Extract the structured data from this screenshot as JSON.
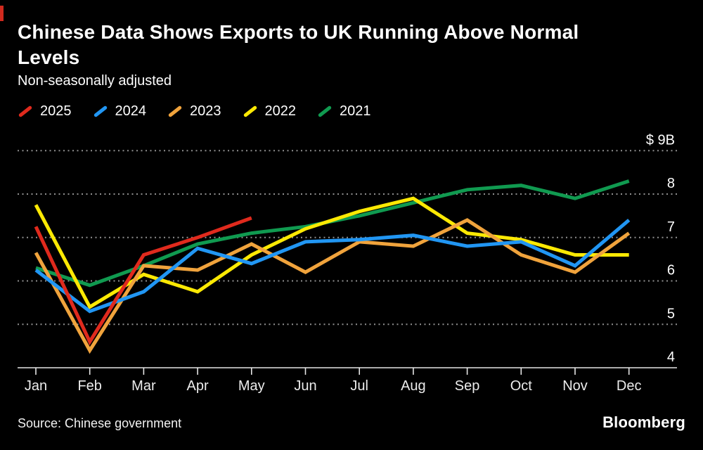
{
  "accent": {
    "corner_mark_color": "#d02a1e"
  },
  "header": {
    "title": "Chinese Data Shows Exports to UK Running Above Normal Levels",
    "subtitle": "Non-seasonally adjusted"
  },
  "chart_data": {
    "type": "line",
    "title": "Chinese Data Shows Exports to UK Running Above Normal Levels",
    "subtitle": "Non-seasonally adjusted",
    "unit": "USD billions",
    "x": [
      "Jan",
      "Feb",
      "Mar",
      "Apr",
      "May",
      "Jun",
      "Jul",
      "Aug",
      "Sep",
      "Oct",
      "Nov",
      "Dec"
    ],
    "ylim": [
      4,
      9
    ],
    "yticks": [
      4,
      5,
      6,
      7,
      8,
      9
    ],
    "ytick_labels": [
      "4",
      "5",
      "6",
      "7",
      "8",
      "$ 9B"
    ],
    "grid": "horizontal-dotted",
    "legend_position": "top-left",
    "series": [
      {
        "name": "2025",
        "color": "#e02a1d",
        "values": [
          7.25,
          4.6,
          6.6,
          7.0,
          7.45,
          null,
          null,
          null,
          null,
          null,
          null,
          null
        ]
      },
      {
        "name": "2024",
        "color": "#2196f3",
        "values": [
          6.25,
          5.3,
          5.75,
          6.75,
          6.4,
          6.9,
          6.95,
          7.05,
          6.8,
          6.9,
          6.35,
          7.4
        ]
      },
      {
        "name": "2023",
        "color": "#f0a33c",
        "values": [
          6.65,
          4.4,
          6.35,
          6.25,
          6.85,
          6.2,
          6.9,
          6.8,
          7.4,
          6.6,
          6.2,
          7.1
        ]
      },
      {
        "name": "2022",
        "color": "#fce903",
        "values": [
          7.75,
          5.4,
          6.15,
          5.75,
          6.6,
          7.2,
          7.6,
          7.9,
          7.1,
          6.95,
          6.6,
          6.6
        ]
      },
      {
        "name": "2021",
        "color": "#109a50",
        "values": [
          6.3,
          5.9,
          6.35,
          6.85,
          7.1,
          7.25,
          7.5,
          7.8,
          8.1,
          8.2,
          7.9,
          8.3
        ]
      }
    ],
    "axis_colors": {
      "grid": "#8f8f8f",
      "axis": "#e6e6e6",
      "tick_text": "#ececec",
      "ytick_text": "#ffffff"
    }
  },
  "footer": {
    "source": "Source: Chinese government",
    "logo": "Bloomberg"
  }
}
